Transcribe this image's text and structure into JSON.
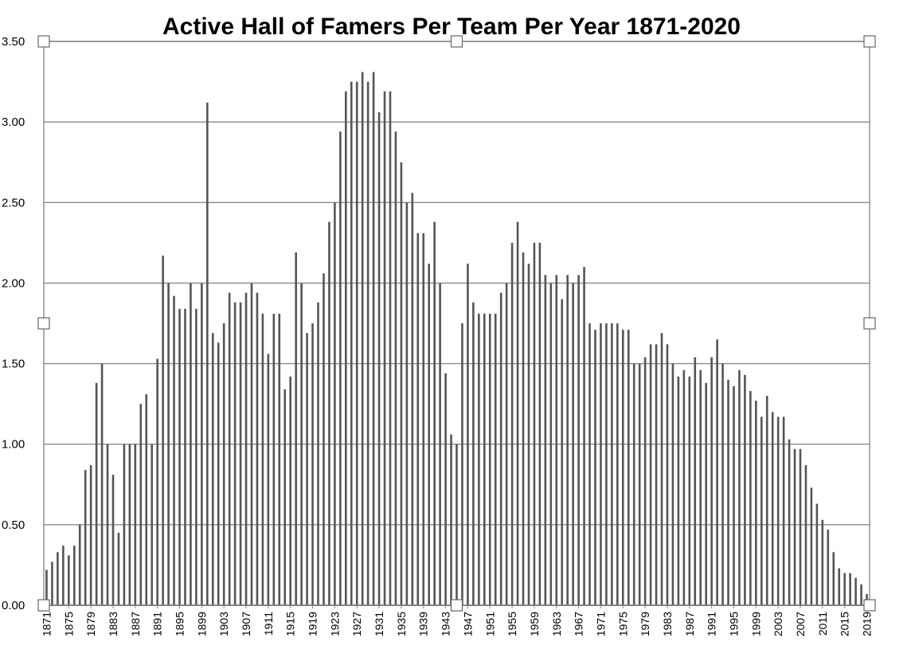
{
  "chart_data": {
    "type": "bar",
    "title": "Active Hall of Famers Per Team Per Year 1871-2020",
    "xlabel": "",
    "ylabel": "",
    "ylim": [
      0,
      3.5
    ],
    "ytick_labels": [
      "0.00",
      "0.50",
      "1.00",
      "1.50",
      "2.00",
      "2.50",
      "3.00",
      "3.50"
    ],
    "grid": true,
    "legend": "none",
    "bar_color": "#555555",
    "x_start": 1871,
    "x_end": 2019,
    "x_tick_step": 4,
    "values": [
      0.22,
      0.27,
      0.33,
      0.37,
      0.31,
      0.37,
      0.5,
      0.84,
      0.87,
      1.38,
      1.5,
      1.0,
      0.81,
      0.45,
      1.0,
      1.0,
      1.0,
      1.25,
      1.31,
      1.0,
      1.53,
      2.17,
      2.0,
      1.92,
      1.84,
      1.84,
      2.0,
      1.84,
      2.0,
      3.12,
      1.69,
      1.63,
      1.75,
      1.94,
      1.88,
      1.88,
      1.94,
      2.0,
      1.94,
      1.81,
      1.56,
      1.81,
      1.81,
      1.34,
      1.42,
      2.19,
      2.0,
      1.69,
      1.75,
      1.88,
      2.06,
      2.38,
      2.5,
      2.94,
      3.19,
      3.25,
      3.25,
      3.31,
      3.25,
      3.31,
      3.06,
      3.19,
      3.19,
      2.94,
      2.75,
      2.5,
      2.56,
      2.31,
      2.31,
      2.12,
      2.38,
      2.0,
      1.44,
      1.06,
      1.0,
      1.75,
      2.12,
      1.88,
      1.81,
      1.81,
      1.81,
      1.81,
      1.94,
      2.0,
      2.25,
      2.38,
      2.19,
      2.12,
      2.25,
      2.25,
      2.05,
      2.0,
      2.05,
      1.9,
      2.05,
      2.0,
      2.05,
      2.1,
      1.75,
      1.71,
      1.75,
      1.75,
      1.75,
      1.75,
      1.71,
      1.71,
      1.5,
      1.5,
      1.54,
      1.62,
      1.62,
      1.69,
      1.62,
      1.5,
      1.42,
      1.46,
      1.42,
      1.54,
      1.46,
      1.38,
      1.54,
      1.65,
      1.5,
      1.4,
      1.36,
      1.46,
      1.43,
      1.33,
      1.27,
      1.17,
      1.3,
      1.2,
      1.17,
      1.17,
      1.03,
      0.97,
      0.97,
      0.87,
      0.73,
      0.63,
      0.53,
      0.47,
      0.33,
      0.23,
      0.2,
      0.2,
      0.17,
      0.13,
      0.07
    ]
  }
}
